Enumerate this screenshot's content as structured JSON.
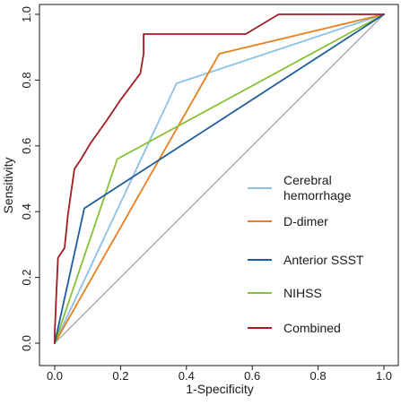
{
  "chart_data": {
    "type": "line",
    "title": "",
    "xlabel": "1-Specificity",
    "ylabel": "Sensitivity",
    "xlim": [
      0.0,
      1.0
    ],
    "ylim": [
      0.0,
      1.0
    ],
    "x_ticks": [
      "0.0",
      "0.2",
      "0.4",
      "0.6",
      "0.8",
      "1.0"
    ],
    "y_ticks": [
      "0.0",
      "0.2",
      "0.4",
      "0.6",
      "0.8",
      "1.0"
    ],
    "grid": false,
    "legend_position": "bottom-right",
    "reference_line": {
      "x": [
        0,
        1
      ],
      "y": [
        0,
        1
      ],
      "color": "#8c8c8c"
    },
    "series": [
      {
        "name": "Cerebral\nhemorrhage",
        "color": "#8cc0e6",
        "points": [
          [
            0,
            0
          ],
          [
            0.37,
            0.79
          ],
          [
            1,
            1
          ]
        ]
      },
      {
        "name": "D-dimer",
        "color": "#e8801e",
        "points": [
          [
            0,
            0
          ],
          [
            0.5,
            0.88
          ],
          [
            1,
            1
          ]
        ]
      },
      {
        "name": "Anterior SSST",
        "color": "#1e5c9c",
        "points": [
          [
            0,
            0
          ],
          [
            0.09,
            0.41
          ],
          [
            1,
            1
          ]
        ]
      },
      {
        "name": "NIHSS",
        "color": "#86c232",
        "points": [
          [
            0,
            0
          ],
          [
            0.19,
            0.56
          ],
          [
            1,
            1
          ]
        ]
      },
      {
        "name": "Combined",
        "color": "#a31c22",
        "points": [
          [
            0,
            0
          ],
          [
            0,
            0.03
          ],
          [
            0.005,
            0.15
          ],
          [
            0.01,
            0.26
          ],
          [
            0.03,
            0.29
          ],
          [
            0.04,
            0.39
          ],
          [
            0.06,
            0.53
          ],
          [
            0.08,
            0.56
          ],
          [
            0.11,
            0.61
          ],
          [
            0.16,
            0.68
          ],
          [
            0.2,
            0.74
          ],
          [
            0.26,
            0.82
          ],
          [
            0.27,
            0.88
          ],
          [
            0.27,
            0.94
          ],
          [
            0.29,
            0.94
          ],
          [
            0.58,
            0.94
          ],
          [
            0.68,
            1.0
          ],
          [
            1,
            1
          ]
        ]
      }
    ]
  }
}
